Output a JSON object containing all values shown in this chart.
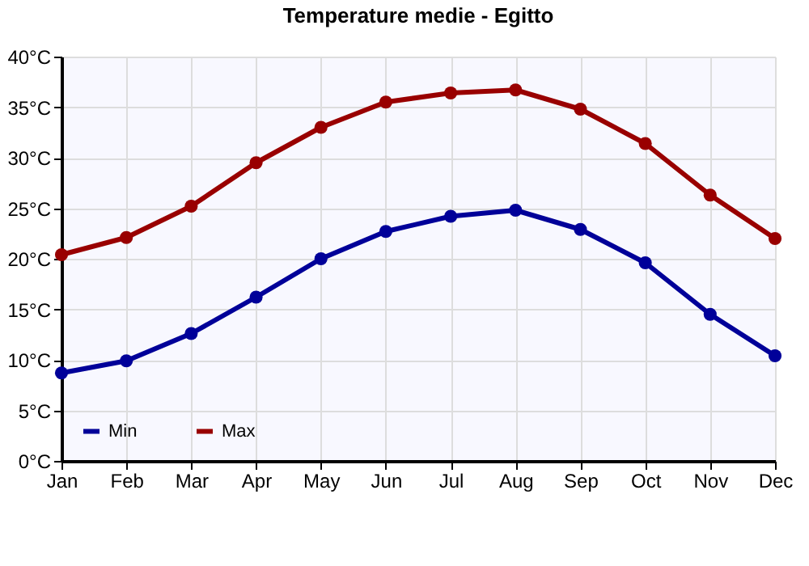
{
  "chart_data": {
    "type": "line",
    "title": "Temperature medie - Egitto",
    "categories": [
      "Jan",
      "Feb",
      "Mar",
      "Apr",
      "May",
      "Jun",
      "Jul",
      "Aug",
      "Sep",
      "Oct",
      "Nov",
      "Dec"
    ],
    "series": [
      {
        "name": "Min",
        "color": "#000099",
        "values": [
          8.7,
          9.9,
          12.6,
          16.2,
          20.0,
          22.7,
          24.2,
          24.8,
          22.9,
          19.6,
          14.5,
          10.4
        ]
      },
      {
        "name": "Max",
        "color": "#990000",
        "values": [
          20.4,
          22.1,
          25.2,
          29.5,
          33.0,
          35.5,
          36.4,
          36.7,
          34.8,
          31.4,
          26.3,
          22.0
        ]
      }
    ],
    "ylim": [
      0,
      40
    ],
    "yticks": [
      {
        "value": 0,
        "label": "0°C"
      },
      {
        "value": 5,
        "label": "5°C"
      },
      {
        "value": 10,
        "label": "10°C"
      },
      {
        "value": 15,
        "label": "15°C"
      },
      {
        "value": 20,
        "label": "20°C"
      },
      {
        "value": 25,
        "label": "25°C"
      },
      {
        "value": 30,
        "label": "30°C"
      },
      {
        "value": 35,
        "label": "35°C"
      },
      {
        "value": 40,
        "label": "40°C"
      }
    ],
    "grid": true,
    "legend": "bottom left",
    "marker": "circle",
    "line_style": "solid"
  }
}
